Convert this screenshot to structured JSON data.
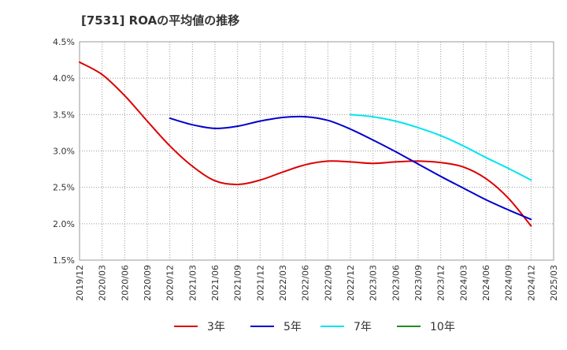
{
  "title": "[7531]  ROAの平均値の推移",
  "chart_data": {
    "type": "line",
    "title": "[7531]  ROAの平均値の推移",
    "xlabel": "",
    "ylabel": "",
    "ylim": [
      1.5,
      4.5
    ],
    "yticks": [
      "1.5%",
      "2.0%",
      "2.5%",
      "3.0%",
      "3.5%",
      "4.0%",
      "4.5%"
    ],
    "x_ticks": [
      "2019/12",
      "2020/03",
      "2020/06",
      "2020/09",
      "2020/12",
      "2021/03",
      "2021/06",
      "2021/09",
      "2021/12",
      "2022/03",
      "2022/06",
      "2022/09",
      "2022/12",
      "2023/03",
      "2023/06",
      "2023/09",
      "2023/12",
      "2024/03",
      "2024/06",
      "2024/09",
      "2024/12",
      "2025/03"
    ],
    "grid": true,
    "legend_position": "bottom",
    "series": [
      {
        "name": "3年",
        "color": "#dd0000",
        "x": [
          "2019/12",
          "2020/03",
          "2020/06",
          "2020/09",
          "2020/12",
          "2021/03",
          "2021/06",
          "2021/09",
          "2021/12",
          "2022/03",
          "2022/06",
          "2022/09",
          "2022/12",
          "2023/03",
          "2023/06",
          "2023/09",
          "2023/12",
          "2024/03",
          "2024/06",
          "2024/09",
          "2024/12"
        ],
        "values": [
          4.22,
          4.05,
          3.76,
          3.41,
          3.07,
          2.79,
          2.59,
          2.54,
          2.6,
          2.71,
          2.81,
          2.86,
          2.85,
          2.83,
          2.85,
          2.86,
          2.84,
          2.78,
          2.62,
          2.35,
          1.97
        ]
      },
      {
        "name": "5年",
        "color": "#0000cc",
        "x": [
          "2020/12",
          "2021/03",
          "2021/06",
          "2021/09",
          "2021/12",
          "2022/03",
          "2022/06",
          "2022/09",
          "2022/12",
          "2023/03",
          "2023/06",
          "2023/09",
          "2023/12",
          "2024/03",
          "2024/06",
          "2024/09",
          "2024/12"
        ],
        "values": [
          3.45,
          3.36,
          3.31,
          3.34,
          3.41,
          3.46,
          3.47,
          3.42,
          3.3,
          3.15,
          2.99,
          2.82,
          2.65,
          2.49,
          2.33,
          2.19,
          2.06
        ]
      },
      {
        "name": "7年",
        "color": "#00e5ee",
        "x": [
          "2022/12",
          "2023/03",
          "2023/06",
          "2023/09",
          "2023/12",
          "2024/03",
          "2024/06",
          "2024/09",
          "2024/12"
        ],
        "values": [
          3.5,
          3.47,
          3.41,
          3.32,
          3.21,
          3.07,
          2.91,
          2.76,
          2.6
        ]
      },
      {
        "name": "10年",
        "color": "#228b22",
        "x": [],
        "values": []
      }
    ]
  }
}
